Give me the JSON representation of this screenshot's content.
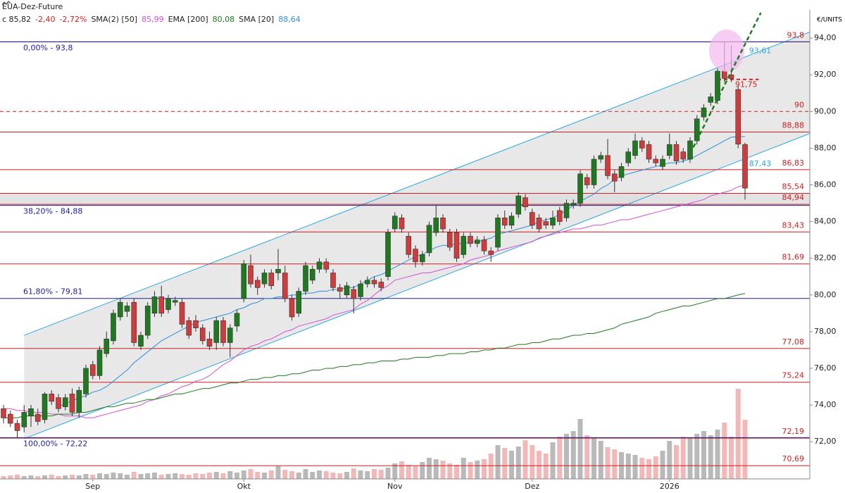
{
  "chart_data": {
    "type": "candlestick",
    "title": "EUA-Dez-Future",
    "close_label": "c 85,82",
    "change": "-2,40",
    "change_pct": "-2,72%",
    "y_axis_label": "€/UNITS",
    "up_color": "#1f7a1f",
    "down_color": "#d13b3b",
    "volume_up_color": "#b9b9b9",
    "volume_down_color": "#f2b8b8",
    "ylim": [
      69.97,
      95.54
    ],
    "yticks": [
      {
        "value": 72,
        "label": "72,00"
      },
      {
        "value": 74,
        "label": "74,00"
      },
      {
        "value": 76,
        "label": "76,00"
      },
      {
        "value": 78,
        "label": "78,00"
      },
      {
        "value": 80,
        "label": "80,00"
      },
      {
        "value": 82,
        "label": "82,00"
      },
      {
        "value": 84,
        "label": "84,00"
      },
      {
        "value": 86,
        "label": "86,00"
      },
      {
        "value": 88,
        "label": "88,00"
      },
      {
        "value": 90,
        "label": "90,00"
      },
      {
        "value": 92,
        "label": "92,00"
      },
      {
        "value": 94,
        "label": "94,00"
      }
    ],
    "categories": [
      null,
      null,
      null,
      null,
      null,
      null,
      null,
      null,
      null,
      null,
      null,
      null,
      null,
      "Sep",
      null,
      null,
      null,
      null,
      null,
      null,
      null,
      null,
      null,
      null,
      null,
      null,
      null,
      null,
      null,
      null,
      null,
      null,
      null,
      null,
      null,
      "Okt",
      null,
      null,
      null,
      null,
      null,
      null,
      null,
      null,
      null,
      null,
      null,
      null,
      null,
      null,
      null,
      null,
      null,
      null,
      null,
      null,
      null,
      "Nov",
      null,
      null,
      null,
      null,
      null,
      null,
      null,
      null,
      null,
      null,
      null,
      null,
      null,
      null,
      null,
      null,
      null,
      null,
      null,
      "Dez",
      null,
      null,
      null,
      null,
      null,
      null,
      null,
      null,
      null,
      null,
      null,
      null,
      null,
      null,
      null,
      null,
      null,
      null,
      null,
      "2026",
      null,
      null,
      null,
      null,
      null,
      null,
      null,
      null,
      null,
      null,
      null
    ],
    "ohlc": [
      [
        73.8,
        74.0,
        73.0,
        73.3
      ],
      [
        73.5,
        73.7,
        72.8,
        73.0
      ],
      [
        73.0,
        73.2,
        72.2,
        72.6
      ],
      [
        72.8,
        74.0,
        72.5,
        73.6
      ],
      [
        73.4,
        74.0,
        72.8,
        73.8
      ],
      [
        73.5,
        73.8,
        72.9,
        73.1
      ],
      [
        73.2,
        74.7,
        73.0,
        74.6
      ],
      [
        74.6,
        74.8,
        74.0,
        74.2
      ],
      [
        74.4,
        74.6,
        73.6,
        73.8
      ],
      [
        73.9,
        74.6,
        73.7,
        74.4
      ],
      [
        74.6,
        74.9,
        73.4,
        73.6
      ],
      [
        73.6,
        75.0,
        73.3,
        74.8
      ],
      [
        74.6,
        76.2,
        74.4,
        76.0
      ],
      [
        76.2,
        76.4,
        75.4,
        75.6
      ],
      [
        75.6,
        77.2,
        75.4,
        77.0
      ],
      [
        76.8,
        78.0,
        76.6,
        77.6
      ],
      [
        77.5,
        79.2,
        77.3,
        79.0
      ],
      [
        78.8,
        79.8,
        78.6,
        79.6
      ],
      [
        79.1,
        79.6,
        78.8,
        79.4
      ],
      [
        79.6,
        79.8,
        77.2,
        77.4
      ],
      [
        77.2,
        78.0,
        77.0,
        77.8
      ],
      [
        77.8,
        79.6,
        77.6,
        79.4
      ],
      [
        79.0,
        80.2,
        78.8,
        79.9
      ],
      [
        79.9,
        80.5,
        78.8,
        79.0
      ],
      [
        79.2,
        80.0,
        79.0,
        79.8
      ],
      [
        79.6,
        79.9,
        79.4,
        79.7
      ],
      [
        79.6,
        79.8,
        78.2,
        78.4
      ],
      [
        78.6,
        78.8,
        77.6,
        77.8
      ],
      [
        78.6,
        78.9,
        78.0,
        78.2
      ],
      [
        78.2,
        78.4,
        77.3,
        77.5
      ],
      [
        77.6,
        78.0,
        77.0,
        77.2
      ],
      [
        77.4,
        78.8,
        77.0,
        78.6
      ],
      [
        78.6,
        78.8,
        77.2,
        77.4
      ],
      [
        77.4,
        78.4,
        76.6,
        78.2
      ],
      [
        78.3,
        79.2,
        78.0,
        79.0
      ],
      [
        79.8,
        81.9,
        79.6,
        81.7
      ],
      [
        81.6,
        82.2,
        80.4,
        80.6
      ],
      [
        80.8,
        81.0,
        80.0,
        80.4
      ],
      [
        80.6,
        81.4,
        80.4,
        81.2
      ],
      [
        81.2,
        81.4,
        80.3,
        80.5
      ],
      [
        81.2,
        82.5,
        80.8,
        81.4
      ],
      [
        81.2,
        81.6,
        79.6,
        79.8
      ],
      [
        79.8,
        80.0,
        78.6,
        78.8
      ],
      [
        79.0,
        80.4,
        78.8,
        80.2
      ],
      [
        80.2,
        81.8,
        80.0,
        81.6
      ],
      [
        80.8,
        81.6,
        80.6,
        81.4
      ],
      [
        81.4,
        82.0,
        81.2,
        81.8
      ],
      [
        81.8,
        82.0,
        81.2,
        81.4
      ],
      [
        81.2,
        81.4,
        80.2,
        80.4
      ],
      [
        80.4,
        80.6,
        79.8,
        80.2
      ],
      [
        80.0,
        80.7,
        79.8,
        80.5
      ],
      [
        80.3,
        80.5,
        79.0,
        79.8
      ],
      [
        79.9,
        80.8,
        79.7,
        80.6
      ],
      [
        80.6,
        81.0,
        80.4,
        80.8
      ],
      [
        80.8,
        81.0,
        80.4,
        80.6
      ],
      [
        80.7,
        80.9,
        80.2,
        80.4
      ],
      [
        81.0,
        83.6,
        80.8,
        83.4
      ],
      [
        83.6,
        84.5,
        83.4,
        84.3
      ],
      [
        84.2,
        84.4,
        83.4,
        83.6
      ],
      [
        83.2,
        83.4,
        82.0,
        82.2
      ],
      [
        82.5,
        82.7,
        81.5,
        81.8
      ],
      [
        81.8,
        82.4,
        81.6,
        82.2
      ],
      [
        82.3,
        84.0,
        82.1,
        83.8
      ],
      [
        83.4,
        84.9,
        83.2,
        84.2
      ],
      [
        84.2,
        84.4,
        83.4,
        83.6
      ],
      [
        83.4,
        83.6,
        82.4,
        82.6
      ],
      [
        83.4,
        83.6,
        81.8,
        82.0
      ],
      [
        82.2,
        83.4,
        82.0,
        83.2
      ],
      [
        83.2,
        83.4,
        82.6,
        82.8
      ],
      [
        82.8,
        83.2,
        82.6,
        83.0
      ],
      [
        83.0,
        83.2,
        82.2,
        82.4
      ],
      [
        82.4,
        82.6,
        81.8,
        82.2
      ],
      [
        82.6,
        84.4,
        82.4,
        84.2
      ],
      [
        84.2,
        84.6,
        83.6,
        83.8
      ],
      [
        83.8,
        84.5,
        83.6,
        84.3
      ],
      [
        84.4,
        85.6,
        84.2,
        85.4
      ],
      [
        85.3,
        85.5,
        84.6,
        84.8
      ],
      [
        84.5,
        84.7,
        83.6,
        83.8
      ],
      [
        84.2,
        84.4,
        83.4,
        83.6
      ],
      [
        84.0,
        84.2,
        83.6,
        83.8
      ],
      [
        83.8,
        84.6,
        83.6,
        84.2
      ],
      [
        84.6,
        84.8,
        83.8,
        84.0
      ],
      [
        84.2,
        85.2,
        84.0,
        85.0
      ],
      [
        84.9,
        85.2,
        84.7,
        85.0
      ],
      [
        85.0,
        86.8,
        84.8,
        86.6
      ],
      [
        86.4,
        86.6,
        85.8,
        86.0
      ],
      [
        86.0,
        87.6,
        85.8,
        87.4
      ],
      [
        87.4,
        87.8,
        87.2,
        87.6
      ],
      [
        87.6,
        88.5,
        86.3,
        86.5
      ],
      [
        86.6,
        86.8,
        85.6,
        86.2
      ],
      [
        86.4,
        87.2,
        86.2,
        87.0
      ],
      [
        87.2,
        88.0,
        87.0,
        87.8
      ],
      [
        87.6,
        88.8,
        87.4,
        88.4
      ],
      [
        88.4,
        88.6,
        87.8,
        88.0
      ],
      [
        88.2,
        88.4,
        87.2,
        87.4
      ],
      [
        87.4,
        87.6,
        87.0,
        87.2
      ],
      [
        87.0,
        87.6,
        86.8,
        87.4
      ],
      [
        87.6,
        88.8,
        87.4,
        88.2
      ],
      [
        88.2,
        88.4,
        87.1,
        87.3
      ],
      [
        87.8,
        88.0,
        87.2,
        87.4
      ],
      [
        87.4,
        88.6,
        87.2,
        88.4
      ],
      [
        88.4,
        89.8,
        88.2,
        89.6
      ],
      [
        89.7,
        90.4,
        89.5,
        90.2
      ],
      [
        90.5,
        91.0,
        90.3,
        90.8
      ],
      [
        90.6,
        92.4,
        90.4,
        92.2
      ],
      [
        92.2,
        93.8,
        91.6,
        91.8
      ],
      [
        92.0,
        93.6,
        91.6,
        91.8
      ],
      [
        91.2,
        91.4,
        88.0,
        88.22
      ],
      [
        88.2,
        88.3,
        85.2,
        85.82
      ]
    ],
    "volume": [
      4,
      5,
      6,
      4,
      5,
      4,
      5,
      6,
      4,
      5,
      6,
      5,
      7,
      6,
      8,
      7,
      9,
      8,
      6,
      10,
      7,
      8,
      9,
      6,
      7,
      8,
      7,
      6,
      8,
      7,
      9,
      10,
      8,
      11,
      9,
      12,
      14,
      10,
      9,
      12,
      18,
      13,
      11,
      9,
      14,
      10,
      12,
      11,
      9,
      8,
      10,
      15,
      12,
      11,
      14,
      13,
      16,
      22,
      25,
      20,
      18,
      24,
      30,
      28,
      26,
      22,
      20,
      30,
      24,
      26,
      28,
      36,
      48,
      44,
      40,
      46,
      55,
      48,
      40,
      36,
      52,
      60,
      64,
      68,
      85,
      62,
      58,
      54,
      45,
      42,
      38,
      36,
      34,
      30,
      28,
      32,
      40,
      54,
      48,
      60,
      58,
      64,
      68,
      62,
      70,
      80,
      60,
      128,
      84
    ],
    "series": [
      {
        "name": "SMA(2) [50]",
        "last_label": "85,99",
        "color": "#d24fd2",
        "values": [
          73.8,
          73.8,
          73.7,
          73.7,
          73.6,
          73.6,
          73.6,
          73.5,
          73.5,
          73.4,
          73.4,
          73.4,
          73.3,
          73.3,
          73.4,
          73.5,
          73.6,
          73.7,
          73.8,
          73.9,
          74.0,
          74.2,
          74.3,
          74.5,
          74.6,
          74.8,
          75.0,
          75.1,
          75.3,
          75.4,
          75.6,
          75.9,
          76.2,
          76.4,
          76.7,
          77.0,
          77.2,
          77.3,
          77.5,
          77.6,
          77.8,
          78.0,
          78.1,
          78.3,
          78.4,
          78.5,
          78.6,
          78.7,
          78.9,
          79.0,
          79.1,
          79.2,
          79.5,
          79.7,
          80.0,
          80.3,
          80.5,
          80.8,
          80.9,
          81.0,
          81.1,
          81.2,
          81.2,
          81.3,
          81.4,
          81.5,
          81.6,
          81.7,
          81.9,
          82.0,
          82.1,
          82.2,
          82.4,
          82.5,
          82.6,
          82.7,
          82.8,
          82.9,
          83.1,
          83.2,
          83.3,
          83.4,
          83.5,
          83.6,
          83.6,
          83.7,
          83.8,
          83.8,
          83.9,
          84.0,
          84.1,
          84.1,
          84.2,
          84.3,
          84.4,
          84.5,
          84.6,
          84.7,
          84.8,
          84.9,
          85.0,
          85.1,
          85.2,
          85.4,
          85.5,
          85.6,
          85.7,
          85.9,
          85.99
        ]
      },
      {
        "name": "EMA [200]",
        "last_label": "80,08",
        "color": "#1e7a1e",
        "values": [
          73.3,
          73.3,
          73.3,
          73.4,
          73.4,
          73.4,
          73.4,
          73.4,
          73.5,
          73.5,
          73.5,
          73.6,
          73.6,
          73.7,
          73.8,
          73.9,
          73.9,
          74.0,
          74.1,
          74.1,
          74.2,
          74.3,
          74.3,
          74.4,
          74.5,
          74.6,
          74.6,
          74.7,
          74.8,
          74.9,
          74.9,
          75.0,
          75.1,
          75.2,
          75.2,
          75.3,
          75.4,
          75.4,
          75.5,
          75.5,
          75.6,
          75.6,
          75.7,
          75.7,
          75.8,
          75.9,
          75.9,
          76.0,
          76.0,
          76.1,
          76.1,
          76.2,
          76.2,
          76.3,
          76.3,
          76.4,
          76.4,
          76.4,
          76.5,
          76.5,
          76.6,
          76.6,
          76.6,
          76.7,
          76.7,
          76.8,
          76.8,
          76.8,
          76.9,
          76.9,
          77.0,
          77.0,
          77.1,
          77.1,
          77.2,
          77.3,
          77.3,
          77.4,
          77.4,
          77.5,
          77.6,
          77.6,
          77.7,
          77.8,
          77.8,
          77.9,
          77.9,
          78.0,
          78.1,
          78.2,
          78.4,
          78.5,
          78.6,
          78.7,
          78.8,
          79.0,
          79.1,
          79.2,
          79.3,
          79.4,
          79.4,
          79.5,
          79.6,
          79.7,
          79.8,
          79.8,
          79.9,
          80.0,
          80.08
        ]
      },
      {
        "name": "SMA [20]",
        "last_label": "88,64",
        "color": "#2b8fd8",
        "values": [
          null,
          null,
          null,
          null,
          null,
          null,
          null,
          null,
          73.9,
          74.1,
          74.2,
          74.4,
          74.5,
          74.7,
          74.8,
          75.0,
          75.3,
          75.6,
          75.9,
          76.3,
          76.6,
          76.9,
          77.2,
          77.5,
          77.7,
          77.9,
          78.1,
          78.3,
          78.5,
          78.6,
          78.7,
          78.8,
          78.9,
          79.0,
          79.2,
          79.3,
          79.5,
          79.6,
          79.8,
          79.8,
          79.9,
          79.9,
          80.0,
          80.0,
          80.1,
          80.1,
          80.2,
          80.2,
          80.3,
          80.3,
          80.4,
          80.4,
          80.6,
          80.8,
          81.0,
          81.1,
          81.3,
          81.5,
          81.7,
          81.9,
          82.1,
          82.2,
          82.4,
          82.6,
          82.7,
          82.7,
          82.8,
          82.8,
          82.9,
          82.9,
          83.0,
          83.1,
          83.3,
          83.4,
          83.5,
          83.6,
          83.7,
          83.8,
          84.0,
          84.1,
          84.2,
          84.4,
          84.6,
          84.9,
          85.1,
          85.3,
          85.5,
          85.8,
          86.0,
          86.3,
          86.5,
          86.6,
          86.7,
          86.8,
          86.9,
          87.0,
          87.1,
          87.2,
          87.2,
          87.3,
          87.4,
          87.6,
          87.8,
          88.0,
          88.2,
          88.4,
          88.6,
          88.62,
          88.64
        ]
      }
    ],
    "levels": [
      {
        "value": 93.8,
        "label": "93,8"
      },
      {
        "value": 91.75,
        "label": "91,75",
        "dashed": true,
        "from": 104,
        "to": 110
      },
      {
        "value": 90,
        "label": "90",
        "dashed": true
      },
      {
        "value": 88.88,
        "label": "88,88"
      },
      {
        "value": 86.83,
        "label": "86,83"
      },
      {
        "value": 85.54,
        "label": "85,54",
        "zone": true
      },
      {
        "value": 84.94,
        "label": "84,94",
        "zone": true
      },
      {
        "value": 83.43,
        "label": "83,43"
      },
      {
        "value": 81.69,
        "label": "81,69"
      },
      {
        "value": 77.08,
        "label": "77,08"
      },
      {
        "value": 75.24,
        "label": "75,24"
      },
      {
        "value": 72.19,
        "label": "72,19"
      },
      {
        "value": 70.69,
        "label": "70,69"
      }
    ],
    "level_color": "#cc1f1f",
    "fib_color": "#1f1f8f",
    "fib_levels": [
      {
        "value": 93.8,
        "label": "0,00% - 93,8",
        "label_pos": "below"
      },
      {
        "value": 84.88,
        "label": "38,20% - 84,88",
        "label_pos": "below"
      },
      {
        "value": 79.81,
        "label": "61,80% - 79,81",
        "label_pos": "above"
      },
      {
        "value": 72.22,
        "label": "100,00% - 72,22",
        "label_pos": "below"
      }
    ],
    "channel": {
      "color": "#2aa8dc",
      "fill": "#e4e4e4",
      "upper": [
        [
          3,
          77.8
        ],
        [
          121.5,
          94.92
        ]
      ],
      "lower": [
        [
          3,
          72.16
        ],
        [
          121.5,
          89.39
        ]
      ]
    },
    "trendline": {
      "color": "#1e7a1e",
      "points": [
        [
          100,
          87.7
        ],
        [
          110.3,
          95.38
        ]
      ]
    },
    "annotations": [
      {
        "value": 93.61,
        "label": "93,61",
        "color": "#2aa8dc"
      },
      {
        "value": 87.43,
        "label": "87,43",
        "color": "#2aa8dc"
      }
    ]
  }
}
